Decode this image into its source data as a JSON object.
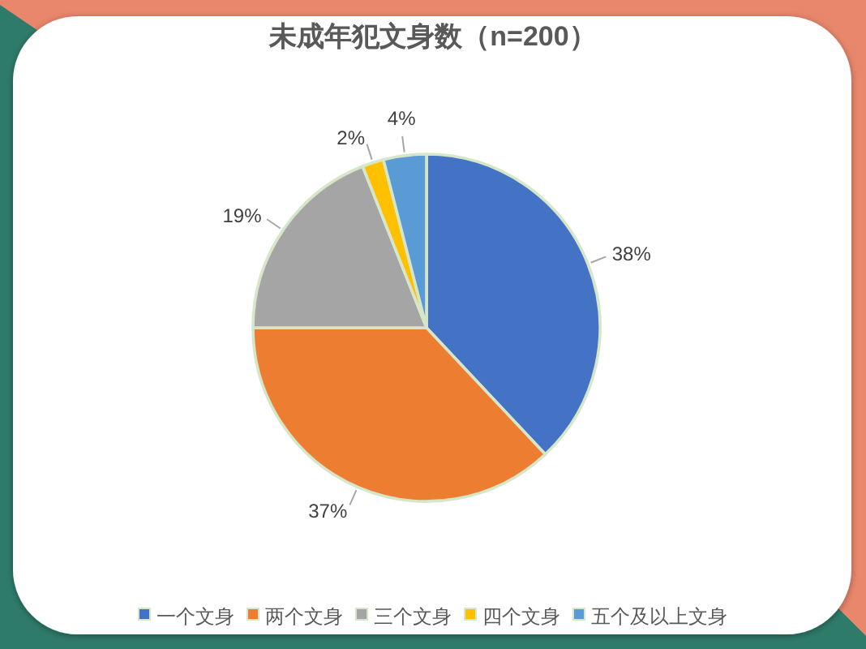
{
  "chart_data": {
    "type": "pie",
    "title": "未成年犯文身数（n=200）",
    "categories": [
      "一个文身",
      "两个文身",
      "三个文身",
      "四个文身",
      "五个及以上文身"
    ],
    "values": [
      38,
      37,
      19,
      2,
      4
    ],
    "colors": [
      "#4472c4",
      "#ed7d31",
      "#a5a5a5",
      "#ffc000",
      "#5b9bd5"
    ],
    "value_labels": [
      "38%",
      "37%",
      "19%",
      "2%",
      "4%"
    ],
    "legend": "bottom"
  }
}
